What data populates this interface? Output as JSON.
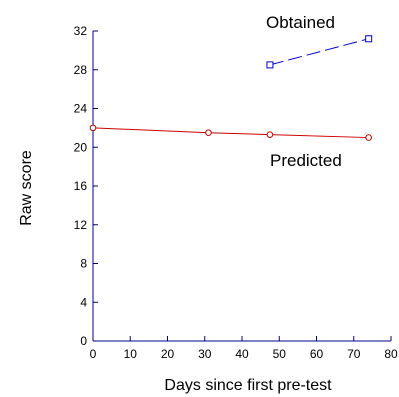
{
  "chart_data": {
    "type": "line",
    "xlabel": "Days since first pre-test",
    "ylabel": "Raw score",
    "xlim": [
      0,
      80
    ],
    "ylim": [
      0,
      32
    ],
    "xticks": [
      0,
      10,
      20,
      30,
      40,
      50,
      60,
      70,
      80
    ],
    "yticks": [
      0,
      4,
      8,
      12,
      16,
      20,
      24,
      28,
      32
    ],
    "grid": false,
    "axis_color": "#00008b",
    "series": [
      {
        "name": "Predicted",
        "color": "#cc0000",
        "marker": "circle",
        "line_style": "solid",
        "points": [
          {
            "x": 0,
            "y": 22.0
          },
          {
            "x": 31,
            "y": 21.5
          },
          {
            "x": 47.5,
            "y": 21.3
          },
          {
            "x": 74,
            "y": 21.0
          }
        ]
      },
      {
        "name": "Obtained",
        "color": "#0000cc",
        "marker": "square",
        "line_style": "dashed",
        "points": [
          {
            "x": 47.5,
            "y": 28.5
          },
          {
            "x": 74,
            "y": 31.2
          }
        ]
      }
    ]
  }
}
